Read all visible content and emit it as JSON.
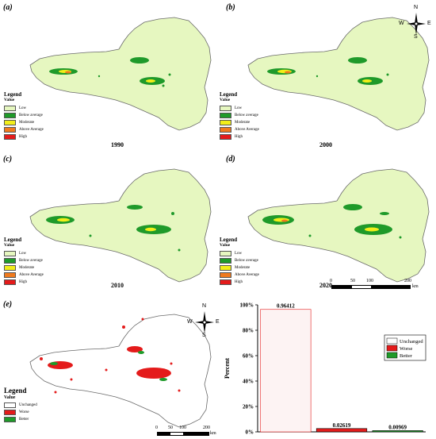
{
  "legend": {
    "title": "Legend",
    "subtitle": "Value",
    "classes": [
      {
        "label": "Low",
        "color": "#e6f7c0"
      },
      {
        "label": "Below average",
        "color": "#1f9a2a"
      },
      {
        "label": "Moderate",
        "color": "#f2ee1a"
      },
      {
        "label": "Above Average",
        "color": "#f07a1e"
      },
      {
        "label": "High",
        "color": "#e41b1b"
      }
    ]
  },
  "change_legend": {
    "title": "Legend",
    "subtitle": "Value",
    "classes": [
      {
        "label": "Unchanged",
        "color": "#ffffff"
      },
      {
        "label": "Worse",
        "color": "#e41b1b"
      },
      {
        "label": "Better",
        "color": "#1f9a2a"
      }
    ]
  },
  "panels": [
    {
      "label": "(a)",
      "year": "1990"
    },
    {
      "label": "(b)",
      "year": "2000"
    },
    {
      "label": "(c)",
      "year": "2010"
    },
    {
      "label": "(d)",
      "year": "2020"
    },
    {
      "label": "(e)",
      "year": ""
    }
  ],
  "compass": {
    "n": "N",
    "s": "S",
    "e": "E",
    "w": "W"
  },
  "scalebar": {
    "ticks": [
      "0",
      "50",
      "100",
      "200"
    ],
    "unit": "km"
  },
  "colors": {
    "land": "#e6f7c0",
    "outline": "#6a6a6a"
  },
  "chart_data": {
    "type": "bar",
    "categories": [
      "Unchanged",
      "Worse",
      "Better"
    ],
    "values": [
      0.96412,
      0.02619,
      0.00969
    ],
    "value_labels": [
      "0.96412",
      "0.02619",
      "0.00969"
    ],
    "colors": [
      "#ffffff",
      "#e41b1b",
      "#1f9a2a"
    ],
    "ylabel": "Percent",
    "yticks": [
      "0%",
      "20%",
      "40%",
      "60%",
      "80%",
      "100%"
    ],
    "ylim": [
      0,
      1
    ],
    "legend_position": "top-right"
  }
}
